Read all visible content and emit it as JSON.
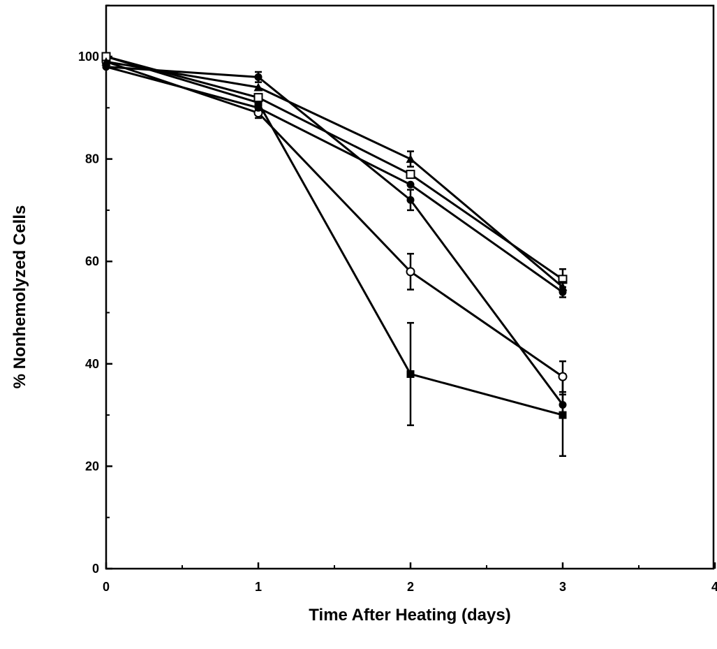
{
  "chart_data": {
    "type": "line",
    "title": "",
    "xlabel": "Time After Heating (days)",
    "ylabel": "% Nonhemolyzed Cells",
    "xlim": [
      0,
      4
    ],
    "ylim": [
      0,
      110
    ],
    "x_ticks": [
      "0",
      "1",
      "2",
      "3",
      "4"
    ],
    "y_ticks": [
      "0",
      "20",
      "40",
      "60",
      "80",
      "100"
    ],
    "grid": false,
    "legend": "none",
    "x": [
      0,
      1,
      2,
      3
    ],
    "series": [
      {
        "marker": "filled-square",
        "values": [
          100,
          91,
          38,
          30
        ],
        "error": [
          0,
          1,
          10,
          8
        ]
      },
      {
        "marker": "open-circle",
        "values": [
          99,
          89,
          58,
          37.5
        ],
        "error": [
          0,
          1,
          3.5,
          3
        ]
      },
      {
        "marker": "filled-circle",
        "values": [
          98,
          96,
          72,
          32
        ],
        "error": [
          0,
          1,
          2,
          2
        ]
      },
      {
        "marker": "open-square",
        "values": [
          100,
          92,
          77,
          56.5
        ],
        "error": [
          0,
          0,
          0,
          2
        ]
      },
      {
        "marker": "filled-circle",
        "values": [
          98,
          90,
          75,
          54
        ],
        "error": [
          0,
          0,
          0,
          1
        ]
      },
      {
        "marker": "filled-triangle",
        "values": [
          99,
          94,
          80,
          55
        ],
        "error": [
          0,
          0,
          1.5,
          1
        ]
      }
    ]
  }
}
